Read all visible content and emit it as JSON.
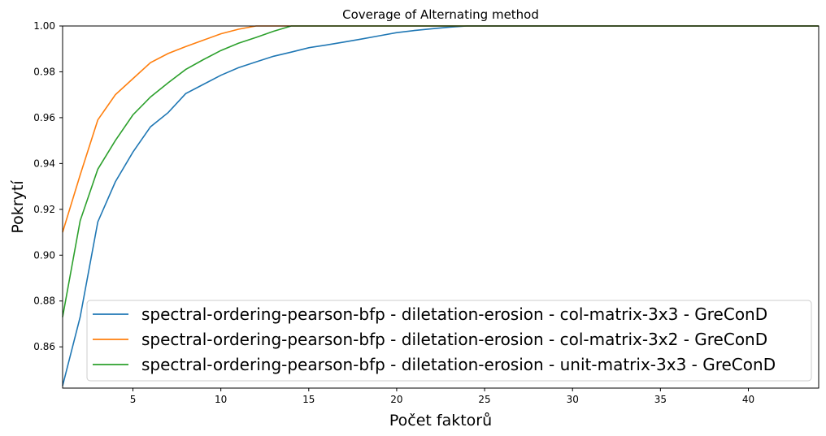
{
  "chart_data": {
    "type": "line",
    "title": "Coverage of Alternating method",
    "xlabel": "Počet faktorů",
    "ylabel": "Pokrytí",
    "xlim": [
      1,
      44
    ],
    "ylim": [
      0.842,
      1.0
    ],
    "xticks": [
      5,
      10,
      15,
      20,
      25,
      30,
      35,
      40
    ],
    "xtick_labels": [
      "5",
      "10",
      "15",
      "20",
      "25",
      "30",
      "35",
      "40"
    ],
    "yticks": [
      0.86,
      0.88,
      0.9,
      0.92,
      0.94,
      0.96,
      0.98,
      1.0
    ],
    "ytick_labels": [
      "0.86",
      "0.88",
      "0.90",
      "0.92",
      "0.94",
      "0.96",
      "0.98",
      "1.00"
    ],
    "grid": false,
    "legend_position": "lower-right",
    "x": [
      1,
      2,
      3,
      4,
      5,
      6,
      7,
      8,
      9,
      10,
      11,
      12,
      13,
      14,
      15,
      16,
      17,
      18,
      19,
      20,
      21,
      22,
      23,
      24,
      25,
      26,
      27,
      28,
      29,
      30,
      31,
      32,
      33,
      34,
      35,
      36,
      37,
      38,
      39,
      40,
      41,
      42,
      43,
      44
    ],
    "series": [
      {
        "name": "spectral-ordering-pearson-bfp - diletation-erosion - col-matrix-3x3 - GreConD",
        "color": "#1f77b4",
        "values": [
          0.843,
          0.873,
          0.9145,
          0.932,
          0.945,
          0.956,
          0.9622,
          0.9705,
          0.9745,
          0.9785,
          0.9818,
          0.9843,
          0.9868,
          0.9886,
          0.9905,
          0.9917,
          0.993,
          0.9943,
          0.9957,
          0.9971,
          0.998,
          0.9988,
          0.9995,
          1.0,
          1.0,
          1.0,
          1.0,
          1.0,
          1.0,
          1.0,
          1.0,
          1.0,
          1.0,
          1.0,
          1.0,
          1.0,
          1.0,
          1.0,
          1.0,
          1.0,
          1.0,
          1.0,
          1.0,
          1.0
        ]
      },
      {
        "name": "spectral-ordering-pearson-bfp - diletation-erosion - col-matrix-3x2 - GreConD",
        "color": "#ff7f0e",
        "values": [
          0.91,
          0.935,
          0.959,
          0.97,
          0.977,
          0.984,
          0.988,
          0.991,
          0.9938,
          0.9966,
          0.9986,
          1.0,
          1.0,
          1.0,
          1.0,
          1.0,
          1.0,
          1.0,
          1.0,
          1.0,
          1.0,
          1.0,
          1.0,
          1.0,
          1.0,
          1.0,
          1.0,
          1.0,
          1.0,
          1.0,
          1.0,
          1.0,
          1.0,
          1.0,
          1.0,
          1.0,
          1.0,
          1.0,
          1.0,
          1.0,
          1.0,
          1.0,
          1.0,
          1.0
        ]
      },
      {
        "name": "spectral-ordering-pearson-bfp - diletation-erosion - unit-matrix-3x3 - GreConD",
        "color": "#2ca02c",
        "values": [
          0.873,
          0.915,
          0.9375,
          0.95,
          0.9612,
          0.969,
          0.9752,
          0.981,
          0.9853,
          0.9893,
          0.9925,
          0.995,
          0.9977,
          1.0,
          1.0,
          1.0,
          1.0,
          1.0,
          1.0,
          1.0,
          1.0,
          1.0,
          1.0,
          1.0,
          1.0,
          1.0,
          1.0,
          1.0,
          1.0,
          1.0,
          1.0,
          1.0,
          1.0,
          1.0,
          1.0,
          1.0,
          1.0,
          1.0,
          1.0,
          1.0,
          1.0,
          1.0,
          1.0,
          1.0
        ]
      }
    ]
  }
}
